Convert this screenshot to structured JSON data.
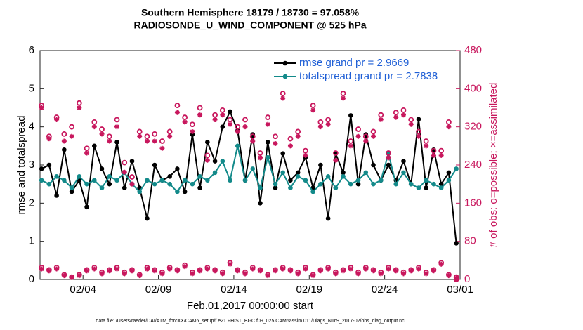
{
  "chart_data": {
    "type": "line",
    "title": "Southern Hemisphere 18179 / 18730 = 97.058%",
    "subtitle": "RADIOSONDE_U_WIND_COMPONENT @ 525 hPa",
    "xlabel": "Feb.01,2017 00:00:00 start",
    "ylabel": "rmse and totalspread",
    "y2label": "# of obs: o=possible; ×=assimilated",
    "footnote": "data file: /Users/raeder/DAI/ATM_forcXX/CAM6_setup/f.e21.FHIST_BGC.f09_025.CAM6assim.011/Diags_NTrS_2017-02/obs_diag_output.nc",
    "xlim": [
      0.15,
      28
    ],
    "xticks": [
      {
        "value": 3,
        "label": "02/04"
      },
      {
        "value": 8,
        "label": "02/09"
      },
      {
        "value": 13,
        "label": "02/14"
      },
      {
        "value": 18,
        "label": "02/19"
      },
      {
        "value": 23,
        "label": "02/24"
      },
      {
        "value": 28,
        "label": "03/01"
      }
    ],
    "ylim": [
      0,
      6
    ],
    "yticks": [
      0,
      1,
      2,
      3,
      4,
      5,
      6
    ],
    "y2lim": [
      0,
      480
    ],
    "y2ticks": [
      0,
      80,
      160,
      240,
      320,
      400,
      480
    ],
    "y2color": "#c8175d",
    "legend": "upper right",
    "x": [
      0.25,
      0.75,
      1.25,
      1.75,
      2.25,
      2.75,
      3.25,
      3.75,
      4.25,
      4.75,
      5.25,
      5.75,
      6.25,
      6.75,
      7.25,
      7.75,
      8.25,
      8.75,
      9.25,
      9.75,
      10.25,
      10.75,
      11.25,
      11.75,
      12.25,
      12.75,
      13.25,
      13.75,
      14.25,
      14.75,
      15.25,
      15.75,
      16.25,
      16.75,
      17.25,
      17.75,
      18.25,
      18.75,
      19.25,
      19.75,
      20.25,
      20.75,
      21.25,
      21.75,
      22.25,
      22.75,
      23.25,
      23.75,
      24.25,
      24.75,
      25.25,
      25.75,
      26.25,
      26.75,
      27.25,
      27.75
    ],
    "series": [
      {
        "name": "rmse grand pr = 2.9669",
        "color": "#000000",
        "marker": "dot",
        "line": true,
        "legend_color": "#1f5fd6",
        "values": [
          2.9,
          3.0,
          2.2,
          3.4,
          2.3,
          2.6,
          1.9,
          3.5,
          2.9,
          2.5,
          3.6,
          2.4,
          3.1,
          2.4,
          1.6,
          3.0,
          2.6,
          2.7,
          2.9,
          2.3,
          3.8,
          2.4,
          3.6,
          3.1,
          4.0,
          4.4,
          3.9,
          2.6,
          3.8,
          2.0,
          3.6,
          2.4,
          3.3,
          2.6,
          2.8,
          3.2,
          2.4,
          3.0,
          1.6,
          3.3,
          2.8,
          4.3,
          2.5,
          3.8,
          3.0,
          2.6,
          3.0,
          2.6,
          3.1,
          2.5,
          4.2,
          2.4,
          3.4,
          2.5,
          2.8,
          0.95
        ]
      },
      {
        "name": "totalspread grand pr = 2.7838",
        "color": "#138a8a",
        "marker": "dot",
        "line": true,
        "legend_color": "#1f5fd6",
        "values": [
          2.6,
          2.5,
          2.7,
          2.6,
          2.4,
          2.7,
          2.5,
          2.6,
          2.4,
          2.7,
          2.6,
          2.8,
          2.5,
          2.3,
          2.6,
          2.5,
          2.6,
          2.5,
          2.3,
          2.6,
          2.5,
          2.7,
          2.6,
          2.8,
          3.1,
          2.6,
          3.5,
          2.6,
          2.9,
          2.4,
          3.2,
          2.5,
          2.8,
          2.4,
          2.7,
          2.6,
          2.3,
          2.5,
          2.7,
          2.4,
          2.7,
          2.5,
          2.6,
          2.8,
          2.5,
          2.6,
          3.3,
          2.5,
          2.8,
          2.5,
          2.4,
          2.6,
          2.5,
          2.4,
          2.6,
          2.9
        ]
      },
      {
        "color": "#c8175d",
        "marker": "circle",
        "line": false,
        "axis": "y2",
        "values": [
          365,
          300,
          340,
          305,
          320,
          370,
          275,
          330,
          315,
          300,
          335,
          245,
          215,
          310,
          300,
          305,
          290,
          310,
          365,
          340,
          325,
          360,
          260,
          345,
          355,
          335,
          320,
          335,
          300,
          265,
          340,
          300,
          390,
          295,
          310,
          270,
          365,
          330,
          335,
          265,
          390,
          290,
          315,
          300,
          310,
          345,
          265,
          350,
          355,
          335,
          310,
          290,
          270,
          270,
          330,
          5
        ]
      },
      {
        "color": "#c8175d",
        "marker": "star",
        "line": false,
        "axis": "y2",
        "values": [
          360,
          295,
          335,
          290,
          300,
          360,
          265,
          320,
          305,
          290,
          320,
          225,
          200,
          300,
          290,
          290,
          275,
          300,
          350,
          330,
          310,
          345,
          250,
          335,
          345,
          325,
          310,
          320,
          290,
          255,
          325,
          285,
          380,
          280,
          300,
          260,
          355,
          320,
          325,
          250,
          380,
          280,
          300,
          290,
          300,
          335,
          255,
          340,
          345,
          325,
          300,
          280,
          260,
          260,
          320,
          3
        ]
      },
      {
        "color": "#c8175d",
        "marker": "circle",
        "line": false,
        "axis": "y2",
        "values": [
          25,
          20,
          25,
          10,
          5,
          10,
          20,
          25,
          15,
          20,
          25,
          15,
          20,
          10,
          25,
          20,
          15,
          25,
          20,
          30,
          15,
          20,
          25,
          20,
          15,
          35,
          20,
          15,
          25,
          20,
          10,
          20,
          25,
          20,
          15,
          25,
          10,
          20,
          25,
          15,
          20,
          25,
          15,
          25,
          20,
          15,
          25,
          20,
          15,
          20,
          25,
          15,
          20,
          35,
          10,
          0
        ]
      },
      {
        "color": "#c8175d",
        "marker": "star",
        "line": false,
        "axis": "y2",
        "values": [
          22,
          18,
          22,
          8,
          4,
          8,
          18,
          22,
          12,
          18,
          22,
          12,
          18,
          8,
          22,
          18,
          12,
          22,
          18,
          27,
          12,
          18,
          22,
          18,
          12,
          32,
          18,
          12,
          22,
          18,
          8,
          18,
          22,
          18,
          12,
          22,
          8,
          18,
          22,
          12,
          18,
          22,
          12,
          22,
          18,
          12,
          22,
          18,
          12,
          18,
          22,
          12,
          18,
          32,
          8,
          0
        ]
      }
    ]
  }
}
